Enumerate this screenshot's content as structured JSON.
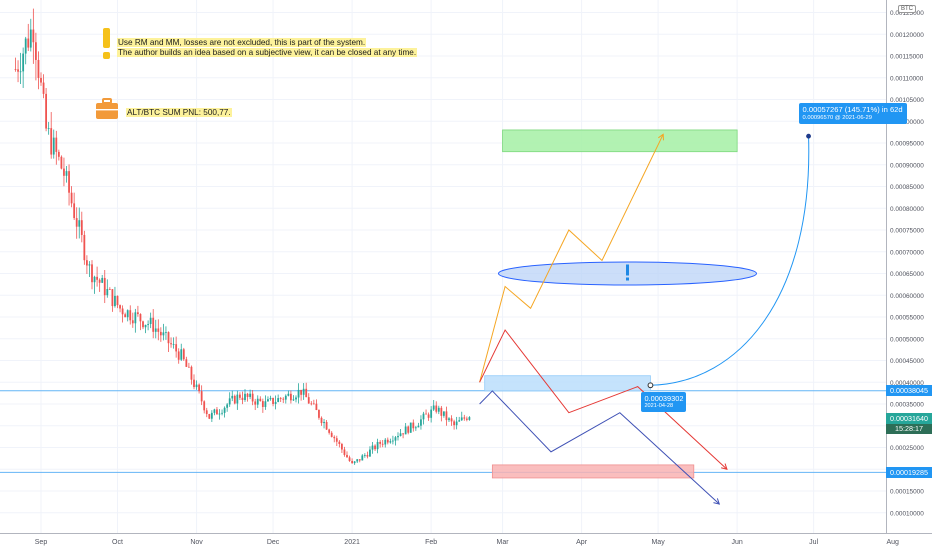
{
  "symbol_badge": "BTC",
  "notes": {
    "warning_line1": "Use RM and MM, losses are not excluded, this is part of the system.",
    "warning_line2": "The author builds an idea based on a subjective view, it can be closed at any time.",
    "pnl": "ALT/BTC SUM PNL: 500,77."
  },
  "colors": {
    "up": "#26a69a",
    "down": "#ef5350",
    "axis_text": "#50535e",
    "hline": "#64b5f6",
    "bubble": "#2196f3",
    "current_price_bg": "#26a69a",
    "level_bg": "#2196f3"
  },
  "price_tags": [
    {
      "label": "0.00038045",
      "value": 0.00038045
    },
    {
      "label": "0.00031640",
      "value": 0.0003164
    },
    {
      "label": "0.00019285",
      "value": 0.00019285
    }
  ],
  "cursor_time": "15:28:17",
  "callouts": {
    "entry": {
      "line1": "0.00039302",
      "line2": "2021-04-28"
    },
    "target": {
      "line1": "0.00057267 (145.71%) in 62d",
      "line2": "0.00096570 @ 2021-06-29"
    }
  },
  "chart_data": {
    "type": "candlestick",
    "x_labels": [
      "Sep",
      "Oct",
      "Nov",
      "Dec",
      "2021",
      "Feb",
      "Mar",
      "Apr",
      "May",
      "Jun",
      "Jul",
      "Aug"
    ],
    "y_ticks": [
      "0.00125000",
      "0.00120000",
      "0.00115000",
      "0.00110000",
      "0.00105000",
      "0.00100000",
      "0.00095000",
      "0.00090000",
      "0.00085000",
      "0.00080000",
      "0.00075000",
      "0.00070000",
      "0.00065000",
      "0.00060000",
      "0.00055000",
      "0.00050000",
      "0.00045000",
      "0.00040000",
      "0.00035000",
      "0.00030000",
      "0.00025000",
      "0.00020000",
      "0.00015000",
      "0.00010000"
    ],
    "ylim": [
      7e-05,
      0.00131
    ],
    "anchors": [
      {
        "date": "2020-08-22",
        "price": 0.00112
      },
      {
        "date": "2020-08-29",
        "price": 0.00122
      },
      {
        "date": "2020-09-03",
        "price": 0.00098
      },
      {
        "date": "2020-09-10",
        "price": 0.00088
      },
      {
        "date": "2020-09-20",
        "price": 0.00066
      },
      {
        "date": "2020-10-02",
        "price": 0.00057
      },
      {
        "date": "2020-10-15",
        "price": 0.00053
      },
      {
        "date": "2020-10-26",
        "price": 0.00046
      },
      {
        "date": "2020-11-06",
        "price": 0.00032
      },
      {
        "date": "2020-11-18",
        "price": 0.00037
      },
      {
        "date": "2020-11-28",
        "price": 0.00035
      },
      {
        "date": "2020-12-12",
        "price": 0.00038
      },
      {
        "date": "2020-12-22",
        "price": 0.0003
      },
      {
        "date": "2021-01-01",
        "price": 0.00021
      },
      {
        "date": "2021-01-12",
        "price": 0.00026
      },
      {
        "date": "2021-01-25",
        "price": 0.0003
      },
      {
        "date": "2021-02-03",
        "price": 0.00034
      },
      {
        "date": "2021-02-10",
        "price": 0.0003
      },
      {
        "date": "2021-02-17",
        "price": 0.00033
      }
    ],
    "horizontal_levels": [
      0.00038045,
      0.00019285
    ],
    "zones": [
      {
        "kind": "target",
        "color": "#a5f0a5",
        "from_date": "2021-03-01",
        "to_date": "2021-06-01",
        "low": 0.00093,
        "high": 0.00098
      },
      {
        "kind": "entry",
        "color": "#bbdefb",
        "from_date": "2021-02-22",
        "to_date": "2021-04-28",
        "low": 0.00038,
        "high": 0.000415
      },
      {
        "kind": "stop",
        "color": "#f9b3b3",
        "from_date": "2021-02-25",
        "to_date": "2021-05-15",
        "low": 0.00018,
        "high": 0.00021
      }
    ],
    "ellipse": {
      "center_date": "2021-04-19",
      "price": 0.00065,
      "color": "#2962ff"
    },
    "scenarios": [
      {
        "color": "#f5a623",
        "points": [
          [
            "2021-02-20",
            0.0004
          ],
          [
            "2021-03-02",
            0.00062
          ],
          [
            "2021-03-12",
            0.00057
          ],
          [
            "2021-03-27",
            0.00075
          ],
          [
            "2021-04-09",
            0.00068
          ],
          [
            "2021-05-03",
            0.00097
          ]
        ]
      },
      {
        "color": "#e53935",
        "points": [
          [
            "2021-02-20",
            0.0004
          ],
          [
            "2021-03-02",
            0.00052
          ],
          [
            "2021-03-27",
            0.00033
          ],
          [
            "2021-04-23",
            0.00039
          ],
          [
            "2021-05-28",
            0.0002
          ]
        ]
      },
      {
        "color": "#3f51b5",
        "points": [
          [
            "2021-02-20",
            0.00035
          ],
          [
            "2021-02-25",
            0.00038
          ],
          [
            "2021-03-20",
            0.00024
          ],
          [
            "2021-04-16",
            0.00033
          ],
          [
            "2021-05-25",
            0.00012
          ]
        ]
      }
    ],
    "projection": {
      "from": [
        "2021-04-28",
        0.00039302
      ],
      "to": [
        "2021-06-29",
        0.0009657
      ]
    }
  }
}
